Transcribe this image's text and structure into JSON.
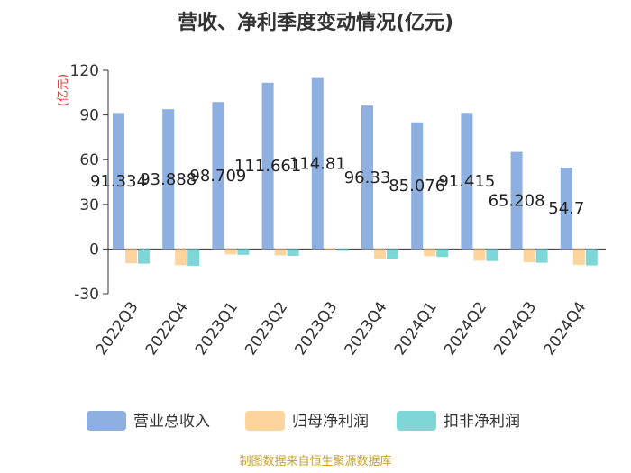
{
  "chart_data": {
    "type": "bar",
    "title": "营收、净利季度变动情况(亿元)",
    "ylabel": "(亿元)",
    "ylim": [
      -30,
      120
    ],
    "yticks": [
      -30,
      0,
      30,
      60,
      90,
      120
    ],
    "categories": [
      "2022Q3",
      "2022Q4",
      "2023Q1",
      "2023Q2",
      "2023Q3",
      "2023Q4",
      "2024Q1",
      "2024Q2",
      "2024Q3",
      "2024Q4"
    ],
    "series": [
      {
        "name": "营业总收入",
        "color": "#8eb0e0",
        "values": [
          91.334,
          93.888,
          98.709,
          111.661,
          114.81,
          96.33,
          85.076,
          91.415,
          65.208,
          54.7
        ],
        "labels": [
          "91.334",
          "93.888",
          "98.709",
          "111.661",
          "114.81",
          "96.33",
          "85.076",
          "91.415",
          "65.208",
          "54.7"
        ]
      },
      {
        "name": "归母净利润",
        "color": "#fdd49e",
        "values": [
          -9.5,
          -10.8,
          -3.6,
          -4.2,
          -1.0,
          -6.5,
          -4.8,
          -7.8,
          -8.8,
          -10.6
        ]
      },
      {
        "name": "扣非净利润",
        "color": "#7fd6d6",
        "values": [
          -9.8,
          -11.2,
          -3.9,
          -4.6,
          -1.2,
          -6.8,
          -5.2,
          -8.1,
          -9.2,
          -11.0
        ]
      }
    ],
    "legend_position": "bottom",
    "grid": false
  },
  "source": "制图数据来自恒生聚源数据库"
}
